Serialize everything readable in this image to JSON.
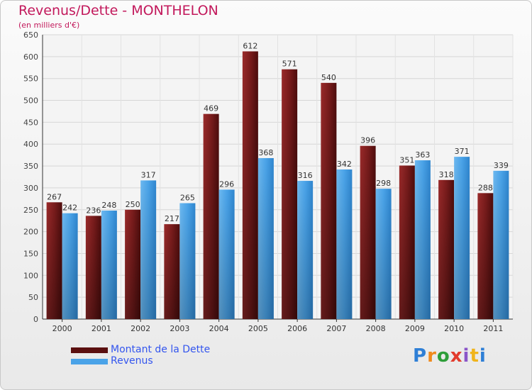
{
  "title": "Revenus/Dette - MONTHELON",
  "subtitle": "(en milliers d'€)",
  "logo": {
    "letters": [
      "P",
      "r",
      "o",
      "x",
      "i",
      "t",
      "i"
    ],
    "colors": [
      "#2e7fd6",
      "#f08a1c",
      "#2e9e3a",
      "#e23b2c",
      "#8a55c8",
      "#f0b41c",
      "#2e7fd6"
    ]
  },
  "chart_data": {
    "type": "bar",
    "categories": [
      "2000",
      "2001",
      "2002",
      "2003",
      "2004",
      "2005",
      "2006",
      "2007",
      "2008",
      "2009",
      "2010",
      "2011"
    ],
    "series": [
      {
        "name": "Montant de la Dette",
        "values": [
          267,
          236,
          250,
          217,
          469,
          612,
          571,
          540,
          396,
          351,
          318,
          288
        ],
        "color": "#7a1c1c"
      },
      {
        "name": "Revenus",
        "values": [
          242,
          248,
          317,
          265,
          296,
          368,
          316,
          342,
          298,
          363,
          371,
          339
        ],
        "color": "#4aa3e8"
      }
    ],
    "ylim": [
      0,
      650
    ],
    "yticks": [
      0,
      50,
      100,
      150,
      200,
      250,
      300,
      350,
      400,
      450,
      500,
      550,
      600,
      650
    ],
    "grid": true,
    "legend": "bottom-left"
  }
}
